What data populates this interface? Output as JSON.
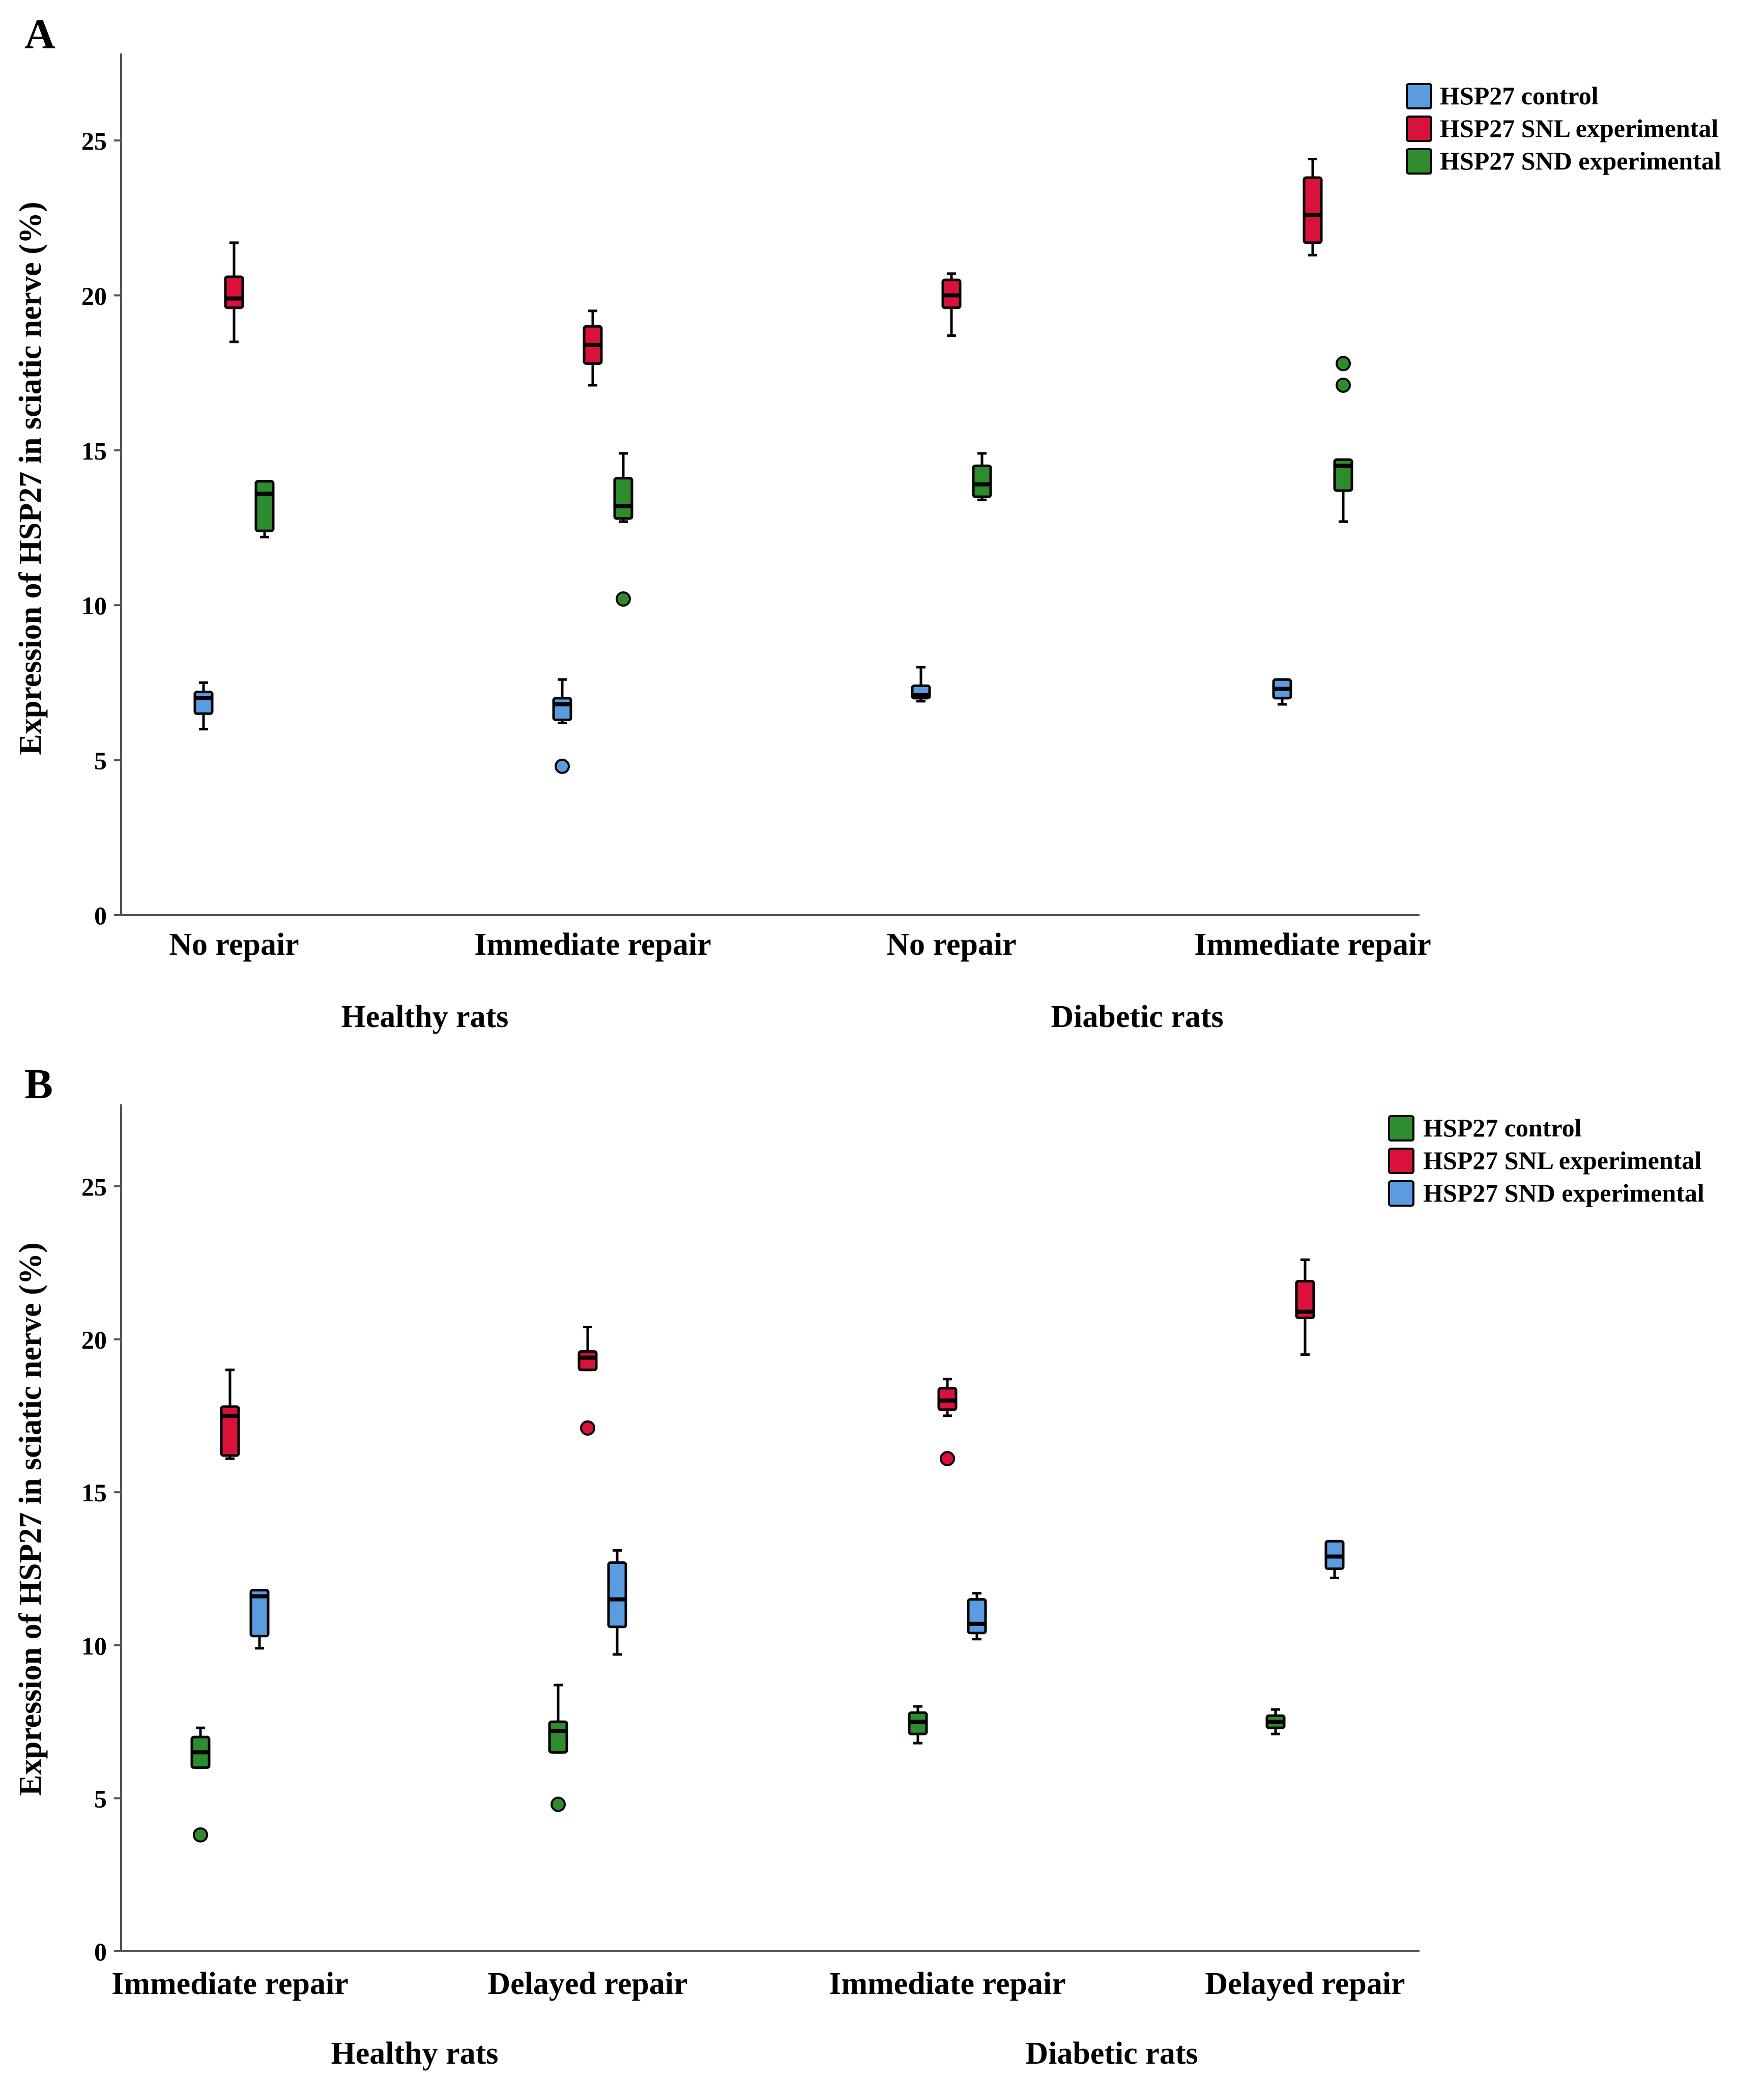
{
  "colors": {
    "blue": "#5b9bdf",
    "red": "#d8123b",
    "green": "#2e8b2e",
    "axis": "#555555",
    "stroke": "#000000"
  },
  "chart_data": [
    {
      "type": "boxplot",
      "panel_label": "A",
      "ylabel": "Expression of HSP27 in sciatic nerve (%)",
      "ylim": [
        0,
        27.5
      ],
      "yticks": [
        0,
        5,
        10,
        15,
        20,
        25
      ],
      "categories": [
        "No repair",
        "Immediate repair",
        "No repair",
        "Immediate repair"
      ],
      "groups": [
        "Healthy rats",
        "Diabetic rats"
      ],
      "legend": [
        "HSP27 control",
        "HSP27 SNL experimental",
        "HSP27 SND experimental"
      ],
      "series": [
        {
          "name": "HSP27 control",
          "color": "blue",
          "boxes": [
            {
              "min": 6.0,
              "q1": 6.5,
              "median": 7.0,
              "q3": 7.2,
              "max": 7.5,
              "outliers": []
            },
            {
              "min": 6.2,
              "q1": 6.3,
              "median": 6.8,
              "q3": 7.0,
              "max": 7.6,
              "outliers": [
                4.8
              ]
            },
            {
              "min": 6.9,
              "q1": 7.0,
              "median": 7.1,
              "q3": 7.4,
              "max": 8.0,
              "outliers": []
            },
            {
              "min": 6.8,
              "q1": 7.0,
              "median": 7.3,
              "q3": 7.6,
              "max": 7.6,
              "outliers": []
            }
          ]
        },
        {
          "name": "HSP27 SNL experimental",
          "color": "red",
          "boxes": [
            {
              "min": 18.5,
              "q1": 19.6,
              "median": 19.9,
              "q3": 20.6,
              "max": 21.7,
              "outliers": []
            },
            {
              "min": 17.1,
              "q1": 17.8,
              "median": 18.4,
              "q3": 19.0,
              "max": 19.5,
              "outliers": []
            },
            {
              "min": 18.7,
              "q1": 19.6,
              "median": 20.0,
              "q3": 20.5,
              "max": 20.7,
              "outliers": []
            },
            {
              "min": 21.3,
              "q1": 21.7,
              "median": 22.6,
              "q3": 23.8,
              "max": 24.4,
              "outliers": []
            }
          ]
        },
        {
          "name": "HSP27 SND experimental",
          "color": "green",
          "boxes": [
            {
              "min": 12.2,
              "q1": 12.4,
              "median": 13.6,
              "q3": 14.0,
              "max": 14.0,
              "outliers": []
            },
            {
              "min": 12.7,
              "q1": 12.8,
              "median": 13.2,
              "q3": 14.1,
              "max": 14.9,
              "outliers": [
                10.2
              ]
            },
            {
              "min": 13.4,
              "q1": 13.5,
              "median": 13.9,
              "q3": 14.5,
              "max": 14.9,
              "outliers": []
            },
            {
              "min": 12.7,
              "q1": 13.7,
              "median": 14.5,
              "q3": 14.7,
              "max": 14.7,
              "outliers": [
                17.8,
                17.1
              ]
            }
          ]
        }
      ]
    },
    {
      "type": "boxplot",
      "panel_label": "B",
      "ylabel": "Expression of  HSP27 in sciatic nerve (%)",
      "ylim": [
        0,
        27.5
      ],
      "yticks": [
        0,
        5,
        10,
        15,
        20,
        25
      ],
      "categories": [
        "Immediate repair",
        "Delayed repair",
        "Immediate repair",
        "Delayed repair"
      ],
      "groups": [
        "Healthy rats",
        "Diabetic rats"
      ],
      "legend": [
        "HSP27 control",
        "HSP27 SNL experimental",
        "HSP27 SND experimental"
      ],
      "series": [
        {
          "name": "HSP27 control",
          "color": "green",
          "boxes": [
            {
              "min": 6.0,
              "q1": 6.0,
              "median": 6.5,
              "q3": 7.0,
              "max": 7.3,
              "outliers": [
                3.8
              ]
            },
            {
              "min": 6.5,
              "q1": 6.5,
              "median": 7.2,
              "q3": 7.5,
              "max": 8.7,
              "outliers": [
                4.8
              ]
            },
            {
              "min": 6.8,
              "q1": 7.1,
              "median": 7.5,
              "q3": 7.8,
              "max": 8.0,
              "outliers": []
            },
            {
              "min": 7.1,
              "q1": 7.3,
              "median": 7.5,
              "q3": 7.7,
              "max": 7.9,
              "outliers": []
            }
          ]
        },
        {
          "name": "HSP27 SNL experimental",
          "color": "red",
          "boxes": [
            {
              "min": 16.1,
              "q1": 16.2,
              "median": 17.5,
              "q3": 17.8,
              "max": 19.0,
              "outliers": []
            },
            {
              "min": 19.0,
              "q1": 19.0,
              "median": 19.4,
              "q3": 19.6,
              "max": 20.4,
              "outliers": [
                17.1
              ]
            },
            {
              "min": 17.5,
              "q1": 17.7,
              "median": 18.0,
              "q3": 18.4,
              "max": 18.7,
              "outliers": [
                16.1
              ]
            },
            {
              "min": 19.5,
              "q1": 20.7,
              "median": 20.9,
              "q3": 21.9,
              "max": 22.6,
              "outliers": []
            }
          ]
        },
        {
          "name": "HSP27 SND experimental",
          "color": "blue",
          "boxes": [
            {
              "min": 9.9,
              "q1": 10.3,
              "median": 11.6,
              "q3": 11.8,
              "max": 11.8,
              "outliers": []
            },
            {
              "min": 9.7,
              "q1": 10.6,
              "median": 11.5,
              "q3": 12.7,
              "max": 13.1,
              "outliers": []
            },
            {
              "min": 10.2,
              "q1": 10.4,
              "median": 10.7,
              "q3": 11.5,
              "max": 11.7,
              "outliers": []
            },
            {
              "min": 12.2,
              "q1": 12.5,
              "median": 12.9,
              "q3": 13.4,
              "max": 13.4,
              "outliers": []
            }
          ]
        }
      ]
    }
  ]
}
